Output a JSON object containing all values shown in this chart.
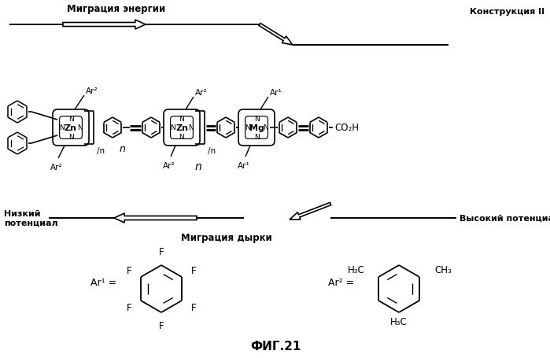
{
  "title": "ФИГ.21",
  "top_right_label": "Конструкция II",
  "energy_migration_label": "Миграция энергии",
  "hole_migration_label": "Миграция дырки",
  "low_potential_label": "Низкий\nпотенциал",
  "high_potential_label": "Высокий потенциал",
  "bg_color": "#ffffff",
  "figsize": [
    6.99,
    4.56
  ],
  "dpi": 100
}
